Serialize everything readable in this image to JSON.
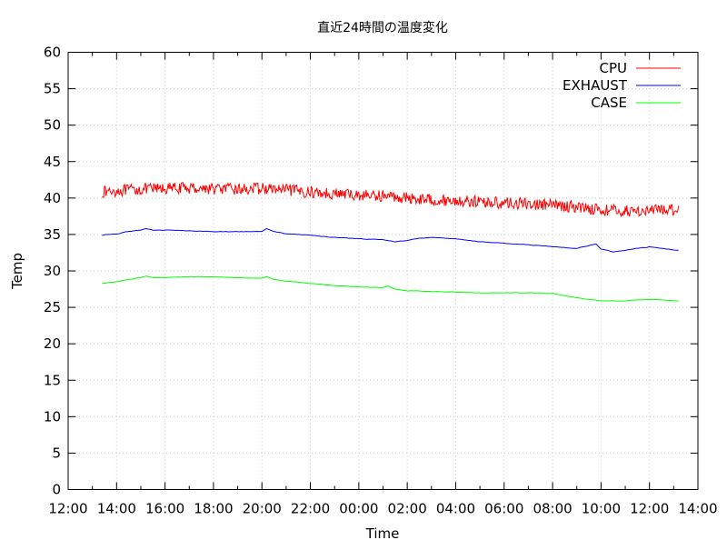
{
  "chart_data": {
    "type": "line",
    "title": "直近24時間の温度変化",
    "xlabel": "Time",
    "ylabel": "Temp",
    "grid": true,
    "legend_position": "top-right",
    "x_unit": "hours",
    "xlim": [
      12,
      38
    ],
    "ylim": [
      0,
      60
    ],
    "y_ticks": [
      0,
      5,
      10,
      15,
      20,
      25,
      30,
      35,
      40,
      45,
      50,
      55,
      60
    ],
    "y_tick_labels": [
      "0",
      "5",
      "10",
      "15",
      "20",
      "25",
      "30",
      "35",
      "40",
      "45",
      "50",
      "55",
      "60"
    ],
    "x_ticks": [
      12,
      14,
      16,
      18,
      20,
      22,
      24,
      26,
      28,
      30,
      32,
      34,
      36,
      38
    ],
    "x_tick_labels": [
      "12:00",
      "14:00",
      "16:00",
      "18:00",
      "20:00",
      "22:00",
      "00:00",
      "02:00",
      "04:00",
      "06:00",
      "08:00",
      "10:00",
      "12:00",
      "14:00"
    ],
    "series": [
      {
        "name": "CPU",
        "color": "#ff0000",
        "noise": 0.8,
        "x": [
          13.4,
          14.0,
          15.0,
          16.0,
          17.0,
          18.0,
          19.0,
          20.0,
          21.0,
          22.0,
          23.0,
          24.0,
          25.0,
          26.0,
          27.0,
          28.0,
          29.0,
          30.0,
          31.0,
          32.0,
          33.0,
          34.0,
          35.0,
          36.0,
          37.2
        ],
        "y": [
          40.8,
          41.0,
          41.2,
          41.3,
          41.4,
          41.3,
          41.2,
          41.3,
          41.1,
          40.8,
          40.6,
          40.4,
          40.3,
          40.0,
          39.8,
          39.6,
          39.5,
          39.3,
          39.2,
          39.0,
          38.8,
          38.4,
          38.2,
          38.3,
          38.5
        ]
      },
      {
        "name": "EXHAUST",
        "color": "#0000ff",
        "noise": 0.08,
        "x": [
          13.4,
          14.0,
          14.5,
          15.0,
          15.2,
          15.5,
          16.0,
          17.0,
          18.0,
          19.0,
          20.0,
          20.2,
          20.5,
          21.0,
          22.0,
          23.0,
          24.0,
          25.0,
          25.5,
          26.0,
          26.5,
          27.0,
          28.0,
          29.0,
          30.0,
          31.0,
          32.0,
          33.0,
          33.8,
          34.0,
          34.5,
          35.0,
          35.5,
          36.0,
          36.5,
          37.2
        ],
        "y": [
          34.9,
          35.1,
          35.4,
          35.6,
          35.8,
          35.6,
          35.6,
          35.5,
          35.4,
          35.4,
          35.4,
          35.8,
          35.4,
          35.1,
          34.9,
          34.6,
          34.4,
          34.3,
          34.0,
          34.2,
          34.5,
          34.6,
          34.4,
          34.0,
          33.8,
          33.6,
          33.3,
          33.1,
          33.7,
          33.0,
          32.6,
          32.8,
          33.1,
          33.3,
          33.1,
          32.8
        ]
      },
      {
        "name": "CASE",
        "color": "#00ff00",
        "noise": 0.08,
        "x": [
          13.4,
          14.0,
          14.5,
          15.0,
          15.2,
          15.5,
          16.0,
          17.0,
          18.0,
          19.0,
          20.0,
          20.2,
          20.5,
          21.0,
          22.0,
          23.0,
          24.0,
          25.0,
          25.2,
          25.5,
          26.0,
          27.0,
          28.0,
          29.0,
          30.0,
          31.0,
          32.0,
          32.5,
          33.0,
          34.0,
          35.0,
          36.0,
          37.2
        ],
        "y": [
          28.3,
          28.5,
          28.8,
          29.1,
          29.3,
          29.1,
          29.1,
          29.2,
          29.2,
          29.1,
          29.0,
          29.2,
          28.8,
          28.6,
          28.3,
          28.0,
          27.8,
          27.7,
          27.9,
          27.5,
          27.3,
          27.2,
          27.1,
          27.0,
          27.0,
          27.0,
          26.9,
          26.6,
          26.3,
          25.9,
          25.9,
          26.1,
          25.9
        ]
      }
    ]
  }
}
